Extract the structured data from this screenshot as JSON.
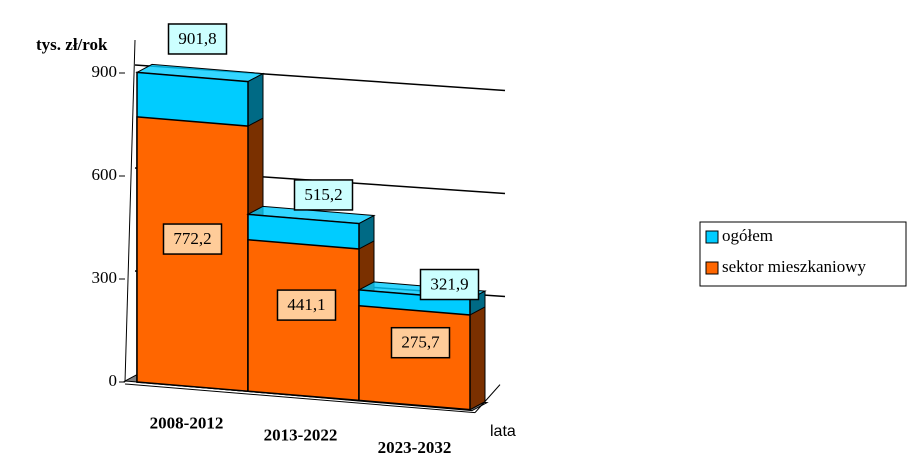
{
  "chart_data": {
    "type": "bar3d",
    "y_axis_label": "tys. zł/rok",
    "x_axis_label": "lata",
    "categories": [
      "2008-2012",
      "2013-2022",
      "2023-2032"
    ],
    "series": [
      {
        "name": "ogółem",
        "color": "#00ccff",
        "side_color": "#006a85",
        "label_color": "#ccffff",
        "values": [
          901.8,
          515.2,
          321.9
        ],
        "value_labels": [
          "901,8",
          "515,2",
          "321,9"
        ]
      },
      {
        "name": "sektor mieszkaniowy",
        "color": "#ff6600",
        "side_color": "#7a3000",
        "label_color": "#ffcc99",
        "values": [
          772.2,
          441.1,
          275.7
        ],
        "value_labels": [
          "772,2",
          "441,1",
          "275,7"
        ]
      }
    ],
    "ylim": [
      0,
      900
    ],
    "yticks": [
      0,
      300,
      600,
      900
    ],
    "grid": true,
    "legend": "right"
  }
}
